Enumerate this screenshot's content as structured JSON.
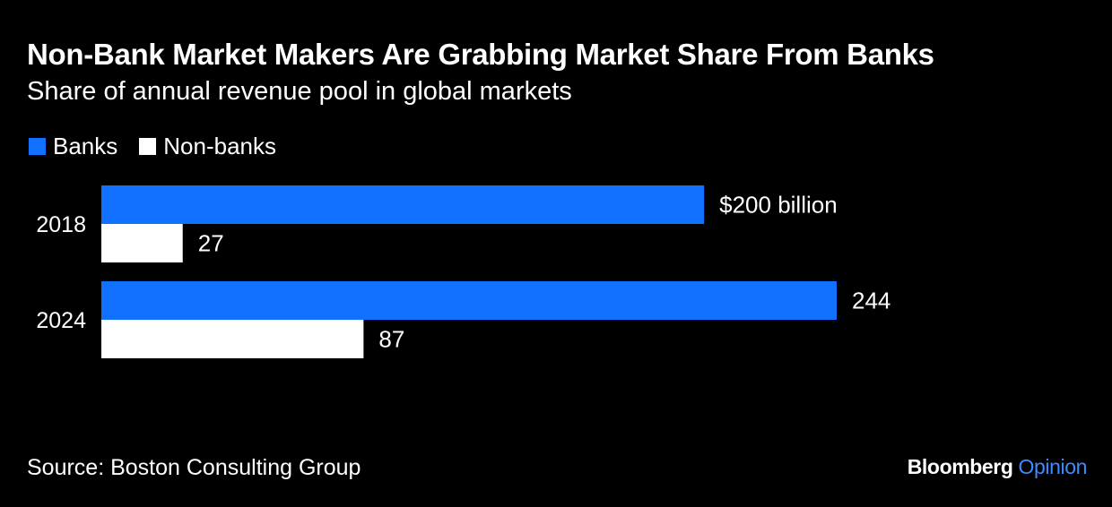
{
  "title": "Non-Bank Market Makers Are Grabbing Market Share From Banks",
  "subtitle": "Share of annual revenue pool in global markets",
  "source": "Source: Boston Consulting Group",
  "brand": {
    "name": "Bloomberg",
    "suffix": "Opinion"
  },
  "colors": {
    "background": "#000000",
    "banks": "#1170ff",
    "non_banks": "#ffffff",
    "brand_accent": "#3a8dff"
  },
  "chart_data": {
    "type": "bar",
    "orientation": "horizontal",
    "categories": [
      "2018",
      "2024"
    ],
    "series": [
      {
        "name": "Banks",
        "values": [
          200,
          244
        ],
        "labels": [
          "$200 billion",
          "244"
        ],
        "color": "#1170ff"
      },
      {
        "name": "Non-banks",
        "values": [
          27,
          87
        ],
        "labels": [
          "27",
          "87"
        ],
        "color": "#ffffff"
      }
    ],
    "xlim": [
      0,
      244
    ],
    "grid": false,
    "legend": "top-left"
  }
}
